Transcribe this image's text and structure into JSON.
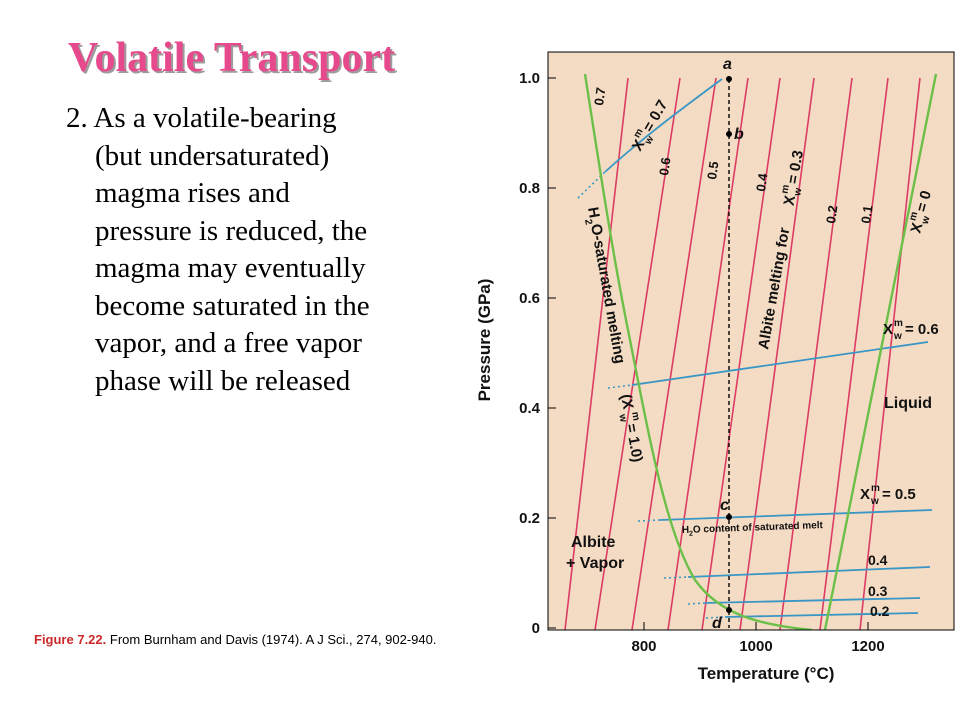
{
  "slide": {
    "title": "Volatile Transport",
    "body_lines": [
      "2. As a volatile-bearing",
      "(but undersaturated)",
      "magma rises and",
      "pressure is reduced, the",
      "magma may eventually",
      "become saturated in the",
      "vapor, and a free vapor",
      "phase will be released"
    ],
    "caption_label": "Figure 7.22.",
    "caption_text": "From Burnham and Davis (1974). A J Sci., 274, 902-940."
  },
  "diagram": {
    "background": "#f4dcc4",
    "colors": {
      "saturated_curve": "#6cc04a",
      "isopleth": "#dc3c64",
      "water_content": "#3a96c4"
    },
    "axes": {
      "x_label": "Temperature (°C)",
      "x_ticks": [
        "800",
        "1000",
        "1200"
      ],
      "y_label": "Pressure (GPa)",
      "y_ticks": [
        "0",
        "0.2",
        "0.4",
        "0.6",
        "0.8",
        "1.0"
      ]
    },
    "points": [
      "a",
      "b",
      "c",
      "d"
    ],
    "isopleth_labels": [
      "0.7",
      "0.6",
      "0.5",
      "0.4",
      "0.2",
      "0.1"
    ],
    "water_content_labels": [
      "0.4",
      "0.3",
      "0.2"
    ],
    "curve_labels": {
      "xw07_top": "= 0.7",
      "xw03_top": "= 0.3",
      "xw0_top": "= 0",
      "xw06": "= 0.6",
      "xw05": "= 0.5",
      "xw_sym_x": "X",
      "xw_sup": "m",
      "xw_sub": "w",
      "saturated_melting_prefix": "H",
      "saturated_melting_sub": "2",
      "saturated_melting_suffix": "O-saturated melting",
      "saturated_xw_open": "(X",
      "saturated_xw_value": "= 1.0)",
      "albite_melting": "Albite melting for",
      "h2o_content_prefix": "H",
      "h2o_content_sub": "2",
      "h2o_content_suffix": "O content of saturated melt"
    },
    "field_labels": {
      "liquid": "Liquid",
      "albite": "Albite",
      "vapor": "+ Vapor"
    }
  }
}
